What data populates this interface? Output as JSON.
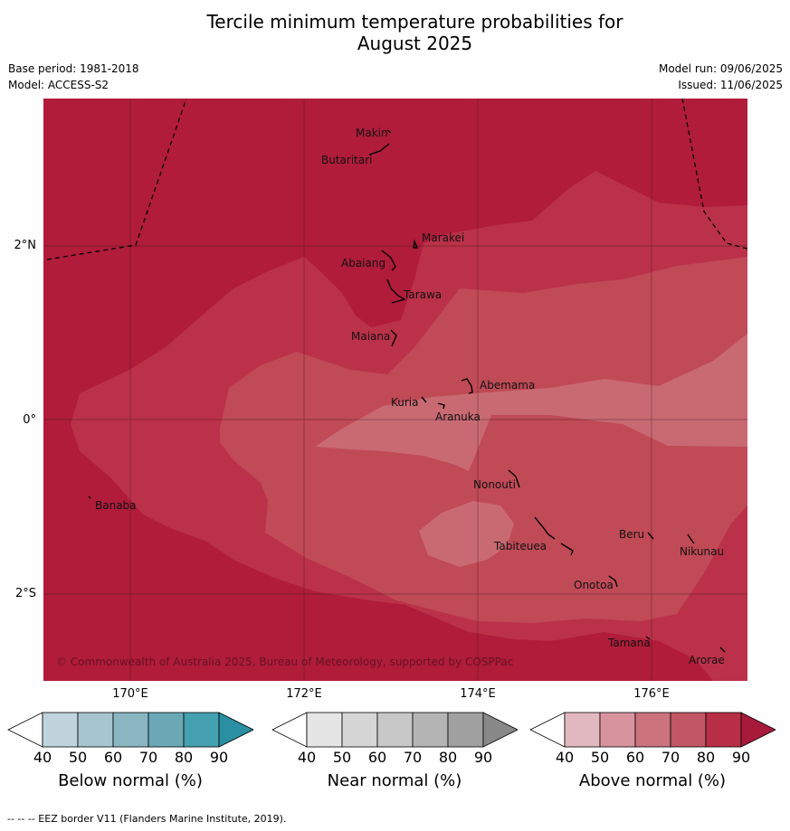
{
  "title": "Tercile minimum temperature probabilities for\nAugust 2025",
  "title_line1": "Tercile minimum temperature probabilities for",
  "title_line2": "August 2025",
  "meta": {
    "base_period": "Base period: 1981-2018",
    "model": "Model: ACCESS-S2",
    "model_run": "Model run: 09/06/2025",
    "issued": "Issued: 11/06/2025"
  },
  "map": {
    "lat_labels": [
      "2°N",
      "0°",
      "2°S"
    ],
    "lon_labels": [
      "170°E",
      "172°E",
      "174°E",
      "176°E"
    ],
    "copyright": "© Commonwealth of Australia 2025, Bureau of Meteorology, supported by COSPPac",
    "islands": [
      "Makin",
      "Butaritari",
      "Marakei",
      "Abaiang",
      "Tarawa",
      "Maiana",
      "Abemama",
      "Kuria",
      "Aranuka",
      "Banaba",
      "Nonouti",
      "Beru",
      "Nikunau",
      "Tabiteuea",
      "Onotoa",
      "Tamana",
      "Arorae"
    ],
    "colors": {
      "above_90": "#b01c3a",
      "above_80": "#bb3149",
      "above_70": "#c04a56",
      "above_60": "#c96a73"
    }
  },
  "colorbars": [
    {
      "label": "Below normal (%)",
      "ticks": [
        "40",
        "50",
        "60",
        "70",
        "80",
        "90"
      ],
      "colors": [
        "#ffffff",
        "#bfd4dc",
        "#a6c5ce",
        "#8ab6c2",
        "#6aa8b6",
        "#45a0b1",
        "#2a8fa3"
      ]
    },
    {
      "label": "Near normal (%)",
      "ticks": [
        "40",
        "50",
        "60",
        "70",
        "80",
        "90"
      ],
      "colors": [
        "#ffffff",
        "#e5e5e5",
        "#d6d6d6",
        "#c8c8c8",
        "#b4b4b4",
        "#a0a0a0",
        "#888888"
      ]
    },
    {
      "label": "Above normal (%)",
      "ticks": [
        "40",
        "50",
        "60",
        "70",
        "80",
        "90"
      ],
      "colors": [
        "#ffffff",
        "#e2b8c0",
        "#d8949e",
        "#cc737e",
        "#c25664",
        "#b92e47",
        "#a81a3a"
      ]
    }
  ],
  "footnote": "--  --  -- EEZ border V11 (Flanders Marine Institute, 2019)."
}
